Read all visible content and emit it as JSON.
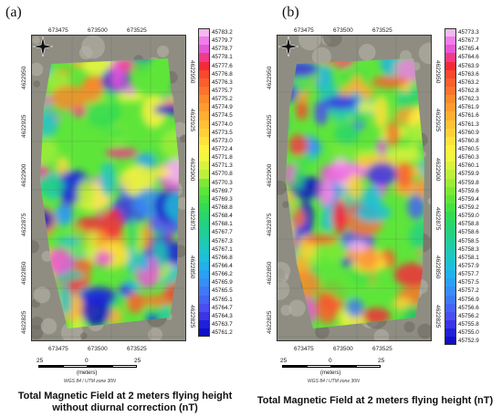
{
  "panels": [
    {
      "label": "(a)",
      "caption_line1": "Total Magnetic Field at 2 meters flying height",
      "caption_line2": "without diurnal correction (nT)",
      "x_ticks": [
        "673475",
        "673500",
        "673525"
      ],
      "y_ticks": [
        "4622950",
        "4622925",
        "4622900",
        "4622875",
        "4622850",
        "4622825"
      ],
      "legend_values": [
        "45783.2",
        "45779.7",
        "45778.7",
        "45778.1",
        "45777.6",
        "45776.8",
        "45776.3",
        "45775.7",
        "45775.2",
        "45774.9",
        "45774.5",
        "45774.0",
        "45773.5",
        "45773.0",
        "45772.4",
        "45771.8",
        "45771.3",
        "45770.8",
        "45770.3",
        "45769.7",
        "45769.3",
        "45768.8",
        "45768.4",
        "45768.1",
        "45767.7",
        "45767.3",
        "45767.1",
        "45766.8",
        "45766.4",
        "45766.2",
        "45765.9",
        "45765.5",
        "45765.1",
        "45764.7",
        "45764.3",
        "45763.7",
        "45761.2"
      ],
      "scale_labels": [
        "25",
        "0",
        "25"
      ],
      "scale_unit": "(meters)",
      "crs": "WGS 84 / UTM zone 30N"
    },
    {
      "label": "(b)",
      "caption_line1": "Total Magnetic Field at 2 meters flying height (nT)",
      "caption_line2": "",
      "x_ticks": [
        "673475",
        "673500",
        "673525"
      ],
      "y_ticks": [
        "4622950",
        "4622925",
        "4622900",
        "4622875",
        "4622850",
        "4622825"
      ],
      "legend_values": [
        "45773.3",
        "45767.7",
        "45765.4",
        "45764.6",
        "45763.9",
        "45763.6",
        "45763.2",
        "45762.8",
        "45762.3",
        "45761.9",
        "45761.6",
        "45761.3",
        "45760.9",
        "45760.8",
        "45760.5",
        "45760.3",
        "45760.1",
        "45759.9",
        "45759.8",
        "45759.6",
        "45759.4",
        "45759.2",
        "45759.0",
        "45758.8",
        "45758.6",
        "45758.5",
        "45758.3",
        "45758.1",
        "45757.9",
        "45757.7",
        "45757.5",
        "45757.2",
        "45756.9",
        "45756.6",
        "45756.2",
        "45755.8",
        "45755.0",
        "45752.9"
      ],
      "scale_labels": [
        "25",
        "0",
        "25"
      ],
      "scale_unit": "(meters)",
      "crs": "WGS 84 / UTM zone 30N"
    }
  ],
  "colors": {
    "ramp": [
      "#f4b8f0",
      "#ef7ee8",
      "#e657d8",
      "#f03a8a",
      "#f42a3a",
      "#f8492d",
      "#fa5f2c",
      "#fb742b",
      "#fc8a2b",
      "#fd9c2d",
      "#ffae31",
      "#ffc135",
      "#ffd138",
      "#ffe23b",
      "#fff23f",
      "#f2f63e",
      "#d9f33c",
      "#bdf03a",
      "#9ded38",
      "#7ce937",
      "#5ee53a",
      "#45e044",
      "#34da55",
      "#2ad56a",
      "#25d181",
      "#22cd98",
      "#20c9b0",
      "#1ec6c6",
      "#1ebfdb",
      "#20b2ea",
      "#2aa1f2",
      "#368ef6",
      "#3f79f7",
      "#4563f5",
      "#4a4ef1",
      "#3d34e6",
      "#2020d8",
      "#1010c8"
    ]
  }
}
